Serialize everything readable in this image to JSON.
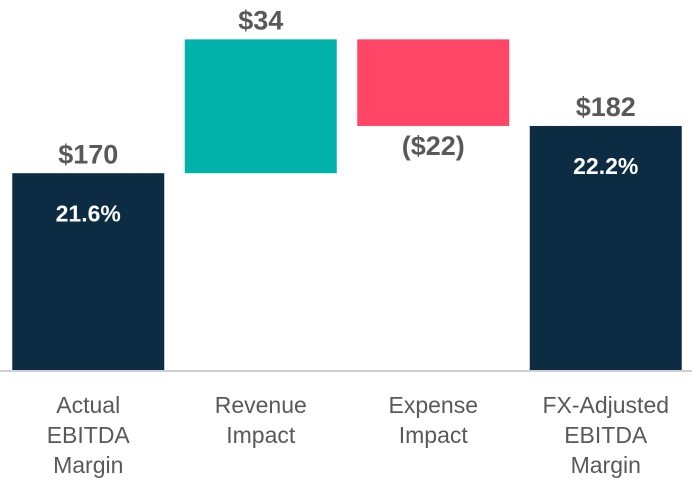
{
  "chart_data": {
    "type": "waterfall",
    "categories": [
      "Actual EBITDA Margin",
      "Revenue Impact",
      "Expense Impact",
      "FX-Adjusted EBITDA Margin"
    ],
    "values": [
      170,
      34,
      -22,
      182
    ],
    "value_labels": [
      "$170",
      "$34",
      "($22)",
      "$182"
    ],
    "measures": [
      "absolute",
      "relative",
      "relative",
      "total"
    ],
    "colors": [
      "#0c2c44",
      "#00b2a9",
      "#ff4667",
      "#0c2c44"
    ],
    "margins": [
      21.6,
      null,
      null,
      22.2
    ],
    "margin_labels": [
      "21.6%",
      null,
      null,
      "22.2%"
    ],
    "ylim": [
      120,
      214
    ]
  }
}
